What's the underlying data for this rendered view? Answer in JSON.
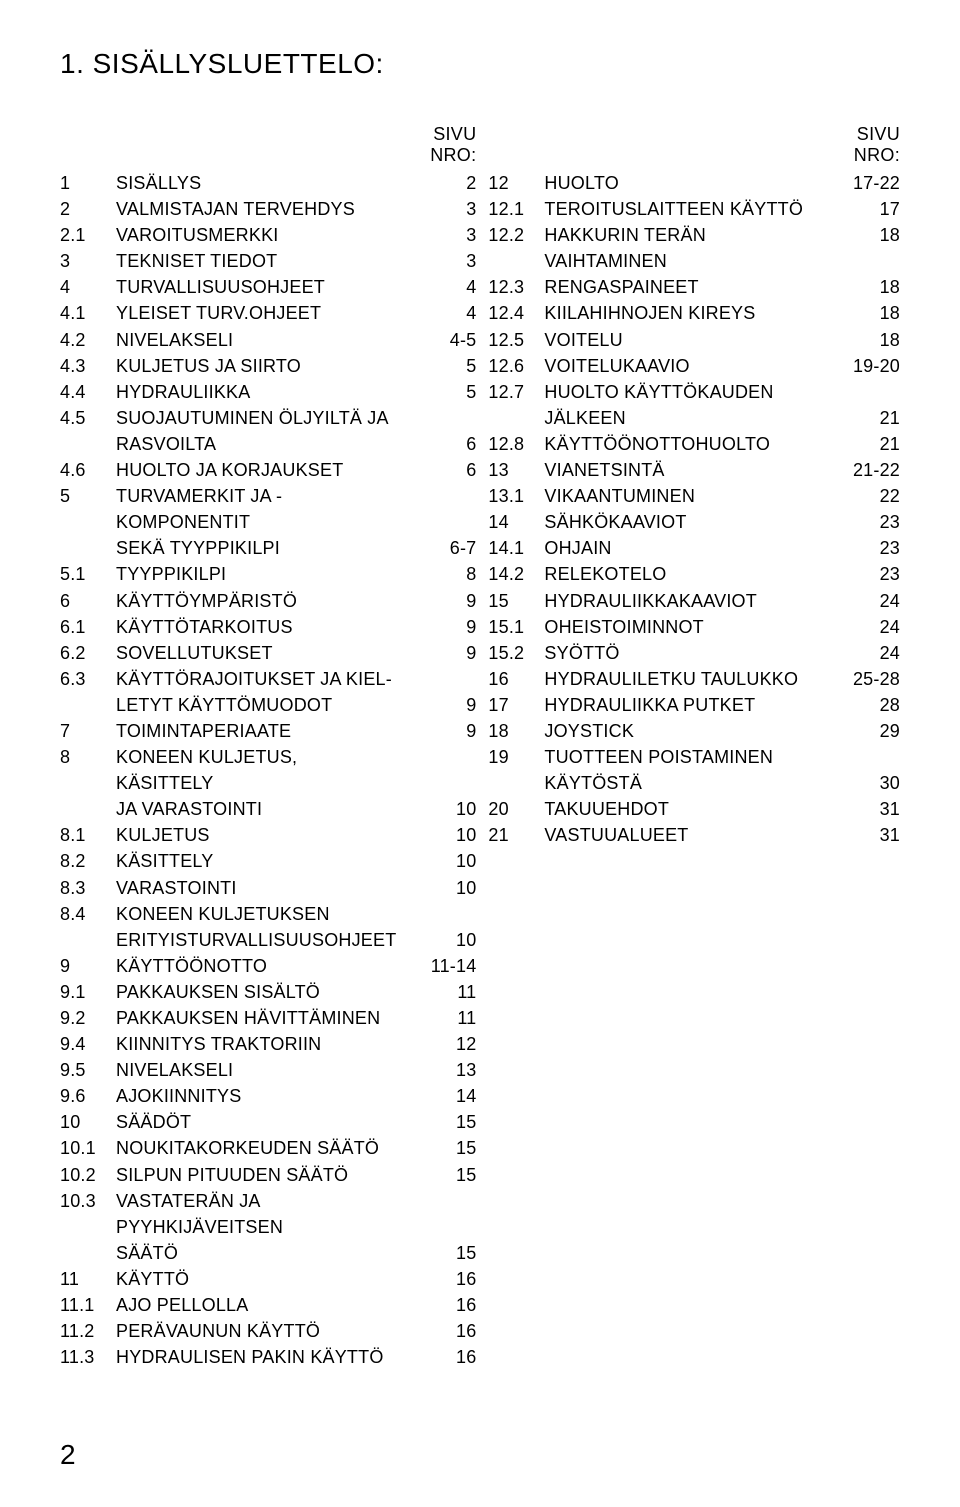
{
  "title": "1. SISÄLLYSLUETTELO:",
  "page_header_label": "SIVU NRO:",
  "page_number": "2",
  "font_family": "Futura, Century Gothic, Helvetica, Arial, sans-serif",
  "colors": {
    "text": "#000000",
    "bg": "#ffffff"
  },
  "left": [
    {
      "n": "1",
      "t": "SISÄLLYS",
      "p": "2"
    },
    {
      "n": "2",
      "t": "VALMISTAJAN TERVEHDYS",
      "p": "3"
    },
    {
      "n": "2.1",
      "t": "VAROITUSMERKKI",
      "p": "3"
    },
    {
      "n": "3",
      "t": "TEKNISET TIEDOT",
      "p": "3"
    },
    {
      "n": "4",
      "t": "TURVALLISUUSOHJEET",
      "p": "4"
    },
    {
      "n": "4.1",
      "t": "YLEISET TURV.OHJEET",
      "p": "4"
    },
    {
      "n": "4.2",
      "t": "NIVELAKSELI",
      "p": "4-5"
    },
    {
      "n": "4.3",
      "t": "KULJETUS JA SIIRTO",
      "p": "5"
    },
    {
      "n": "4.4",
      "t": "HYDRAULIIKKA",
      "p": "5"
    },
    {
      "n": "4.5",
      "t": "SUOJAUTUMINEN ÖLJYILTÄ JA",
      "p": ""
    },
    {
      "n": "",
      "t": "RASVOILTA",
      "p": "6"
    },
    {
      "n": "4.6",
      "t": "HUOLTO JA KORJAUKSET",
      "p": "6"
    },
    {
      "n": "5",
      "t": "TURVAMERKIT JA - KOMPONENTIT",
      "p": ""
    },
    {
      "n": "",
      "t": "SEKÄ TYYPPIKILPI",
      "p": "6-7"
    },
    {
      "n": "5.1",
      "t": "TYYPPIKILPI",
      "p": "8"
    },
    {
      "n": "6",
      "t": "KÄYTTÖYMPÄRISTÖ",
      "p": "9"
    },
    {
      "n": "6.1",
      "t": "KÄYTTÖTARKOITUS",
      "p": "9"
    },
    {
      "n": "6.2",
      "t": "SOVELLUTUKSET",
      "p": "9"
    },
    {
      "n": "6.3",
      "t": "KÄYTTÖRAJOITUKSET JA KIEL-",
      "p": ""
    },
    {
      "n": "",
      "t": "LETYT KÄYTTÖMUODOT",
      "p": "9"
    },
    {
      "n": "7",
      "t": "TOIMINTAPERIAATE",
      "p": "9"
    },
    {
      "n": "8",
      "t": "KONEEN KULJETUS, KÄSITTELY",
      "p": ""
    },
    {
      "n": "",
      "t": "JA VARASTOINTI",
      "p": "10"
    },
    {
      "n": "8.1",
      "t": "KULJETUS",
      "p": "10"
    },
    {
      "n": "8.2",
      "t": "KÄSITTELY",
      "p": "10"
    },
    {
      "n": "8.3",
      "t": "VARASTOINTI",
      "p": "10"
    },
    {
      "n": "8.4",
      "t": "KONEEN KULJETUKSEN",
      "p": ""
    },
    {
      "n": "",
      "t": "ERITYISTURVALLISUUSOHJEET",
      "p": "10"
    },
    {
      "n": "9",
      "t": "KÄYTTÖÖNOTTO",
      "p": "11-14"
    },
    {
      "n": "9.1",
      "t": "PAKKAUKSEN SISÄLTÖ",
      "p": "11"
    },
    {
      "n": "9.2",
      "t": "PAKKAUKSEN HÄVITTÄMINEN",
      "p": "11"
    },
    {
      "n": "9.4",
      "t": "KIINNITYS TRAKTORIIN",
      "p": "12"
    },
    {
      "n": "9.5",
      "t": "NIVELAKSELI",
      "p": "13"
    },
    {
      "n": "9.6",
      "t": "AJOKIINNITYS",
      "p": "14"
    },
    {
      "n": "10",
      "t": "SÄÄDÖT",
      "p": "15"
    },
    {
      "n": "10.1",
      "t": "NOUKITAKORKEUDEN SÄÄTÖ",
      "p": "15"
    },
    {
      "n": "10.2",
      "t": "SILPUN PITUUDEN SÄÄTÖ",
      "p": "15"
    },
    {
      "n": "10.3",
      "t": "VASTATERÄN JA PYYHKIJÄVEITSEN",
      "p": ""
    },
    {
      "n": "",
      "t": "SÄÄTÖ",
      "p": "15"
    },
    {
      "n": "11",
      "t": "KÄYTTÖ",
      "p": "16"
    },
    {
      "n": "11.1",
      "t": "AJO PELLOLLA",
      "p": "16"
    },
    {
      "n": "11.2",
      "t": "PERÄVAUNUN KÄYTTÖ",
      "p": "16"
    },
    {
      "n": "11.3",
      "t": "HYDRAULISEN PAKIN KÄYTTÖ",
      "p": "16"
    }
  ],
  "right": [
    {
      "n": "12",
      "t": "HUOLTO",
      "p": "17-22"
    },
    {
      "n": "12.1",
      "t": "TEROITUSLAITTEEN KÄYTTÖ",
      "p": "17"
    },
    {
      "n": "12.2",
      "t": "HAKKURIN TERÄN VAIHTAMINEN",
      "p": "18"
    },
    {
      "n": "12.3",
      "t": "RENGASPAINEET",
      "p": "18"
    },
    {
      "n": "12.4",
      "t": "KIILAHIHNOJEN KIREYS",
      "p": "18"
    },
    {
      "n": "12.5",
      "t": "VOITELU",
      "p": "18"
    },
    {
      "n": "12.6",
      "t": "VOITELUKAAVIO",
      "p": "19-20"
    },
    {
      "n": "12.7",
      "t": "HUOLTO KÄYTTÖKAUDEN",
      "p": ""
    },
    {
      "n": "",
      "t": "JÄLKEEN",
      "p": "21"
    },
    {
      "n": "12.8",
      "t": "KÄYTTÖÖNOTTOHUOLTO",
      "p": "21"
    },
    {
      "n": "13",
      "t": "VIANETSINTÄ",
      "p": "21-22"
    },
    {
      "n": "13.1",
      "t": "VIKAANTUMINEN",
      "p": "22"
    },
    {
      "n": "14",
      "t": "SÄHKÖKAAVIOT",
      "p": "23"
    },
    {
      "n": "14.1",
      "t": "OHJAIN",
      "p": "23"
    },
    {
      "n": "14.2",
      "t": "RELEKOTELO",
      "p": "23"
    },
    {
      "n": "15",
      "t": "HYDRAULIIKKAKAAVIOT",
      "p": "24"
    },
    {
      "n": "15.1",
      "t": "OHEISTOIMINNOT",
      "p": "24"
    },
    {
      "n": "15.2",
      "t": "SYÖTTÖ",
      "p": "24"
    },
    {
      "n": "16",
      "t": "HYDRAULILETKU TAULUKKO",
      "p": "25-28"
    },
    {
      "n": "17",
      "t": "HYDRAULIIKKA PUTKET",
      "p": " 28"
    },
    {
      "n": "18",
      "t": "JOYSTICK",
      "p": "29"
    },
    {
      "n": "19",
      "t": "TUOTTEEN POISTAMINEN",
      "p": ""
    },
    {
      "n": "",
      "t": "KÄYTÖSTÄ",
      "p": "30"
    },
    {
      "n": "20",
      "t": "TAKUUEHDOT",
      "p": "31"
    },
    {
      "n": "21",
      "t": "VASTUUALUEET",
      "p": "31"
    }
  ]
}
